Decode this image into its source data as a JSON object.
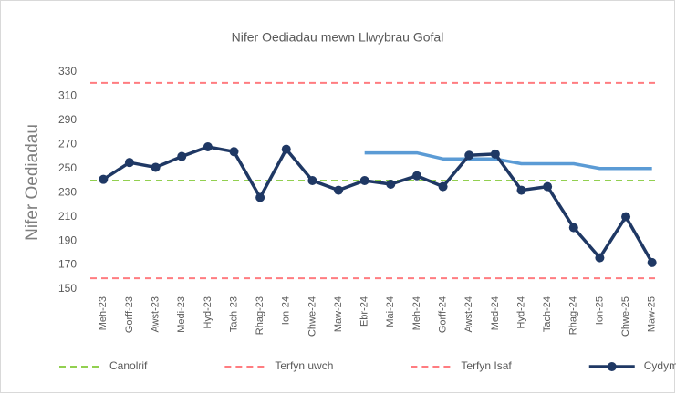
{
  "chart_data": {
    "type": "line",
    "title": "Nifer Oediadau mewn Llwybrau Gofal",
    "y_label": "Nifer Oediadau",
    "categories": [
      "Meh-23",
      "Gorff-23",
      "Awst-23",
      "Medi-23",
      "Hyd-23",
      "Tach-23",
      "Rhag-23",
      "Ion-24",
      "Chwe-24",
      "Maw-24",
      "Ebr-24",
      "Mai-24",
      "Meh-24",
      "Gorff-24",
      "Awst-24",
      "Med-24",
      "Hyd-24",
      "Tach-24",
      "Rhag-24",
      "Ion-25",
      "Chwe-25",
      "Maw-25"
    ],
    "ylim": [
      150,
      330
    ],
    "yticks": [
      150,
      170,
      190,
      210,
      230,
      250,
      270,
      290,
      310,
      330
    ],
    "reference_lines": [
      {
        "name": "Canolrif",
        "color": "#92d050",
        "value": 240
      },
      {
        "name": "Terfyn uwch",
        "color": "#ff7c80",
        "value": 321
      },
      {
        "name": "Terfyn Isaf",
        "color": "#ff7c80",
        "value": 159
      }
    ],
    "series": [
      {
        "color": "#5b9bd5",
        "markers": false,
        "values": [
          null,
          null,
          null,
          null,
          null,
          null,
          null,
          null,
          null,
          null,
          263,
          263,
          263,
          258,
          258,
          258,
          254,
          254,
          254,
          250,
          250,
          250
        ]
      },
      {
        "name": "Cydymffurfiaeth",
        "color": "#1f3864",
        "markers": true,
        "values": [
          241,
          255,
          251,
          260,
          268,
          264,
          226,
          266,
          240,
          232,
          240,
          237,
          244,
          235,
          261,
          262,
          232,
          235,
          201,
          176,
          210,
          172
        ]
      }
    ]
  }
}
